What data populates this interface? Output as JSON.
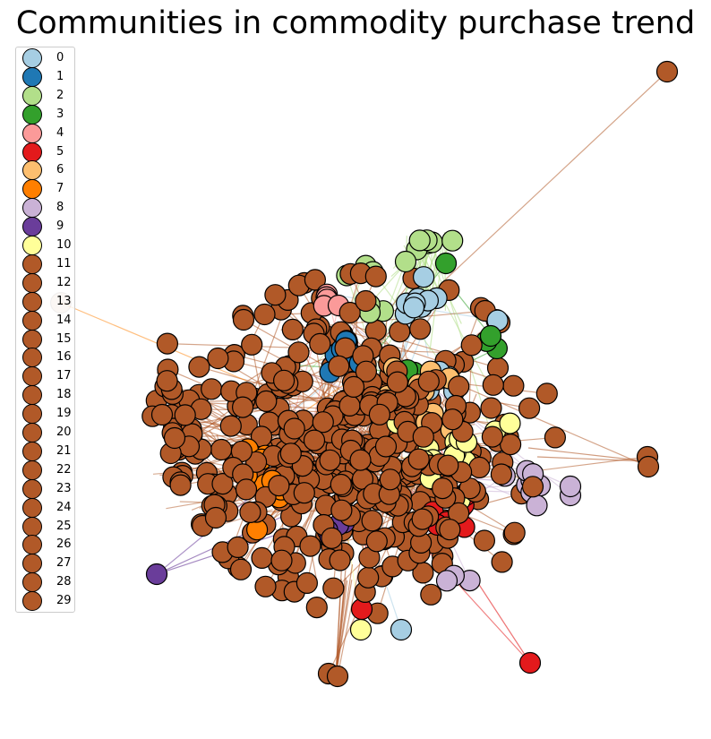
{
  "title": "Communities in commodity purchase trend",
  "legend": {
    "items": [
      {
        "label": "0",
        "color": "#a6cee3"
      },
      {
        "label": "1",
        "color": "#1f78b4"
      },
      {
        "label": "2",
        "color": "#b2df8a"
      },
      {
        "label": "3",
        "color": "#33a02c"
      },
      {
        "label": "4",
        "color": "#fb9a99"
      },
      {
        "label": "5",
        "color": "#e31a1c"
      },
      {
        "label": "6",
        "color": "#fdbf6f"
      },
      {
        "label": "7",
        "color": "#ff7f00"
      },
      {
        "label": "8",
        "color": "#cab2d6"
      },
      {
        "label": "9",
        "color": "#6a3d9a"
      },
      {
        "label": "10",
        "color": "#ffff99"
      },
      {
        "label": "11",
        "color": "#b15928"
      },
      {
        "label": "12",
        "color": "#b15928"
      },
      {
        "label": "13",
        "color": "#b15928"
      },
      {
        "label": "14",
        "color": "#b15928"
      },
      {
        "label": "15",
        "color": "#b15928"
      },
      {
        "label": "16",
        "color": "#b15928"
      },
      {
        "label": "17",
        "color": "#b15928"
      },
      {
        "label": "18",
        "color": "#b15928"
      },
      {
        "label": "19",
        "color": "#b15928"
      },
      {
        "label": "20",
        "color": "#b15928"
      },
      {
        "label": "21",
        "color": "#b15928"
      },
      {
        "label": "22",
        "color": "#b15928"
      },
      {
        "label": "23",
        "color": "#b15928"
      },
      {
        "label": "24",
        "color": "#b15928"
      },
      {
        "label": "25",
        "color": "#b15928"
      },
      {
        "label": "26",
        "color": "#b15928"
      },
      {
        "label": "27",
        "color": "#b15928"
      },
      {
        "label": "28",
        "color": "#b15928"
      },
      {
        "label": "29",
        "color": "#b15928"
      }
    ]
  },
  "style": {
    "node_edge_color": "#000000",
    "background": "#ffffff"
  }
}
